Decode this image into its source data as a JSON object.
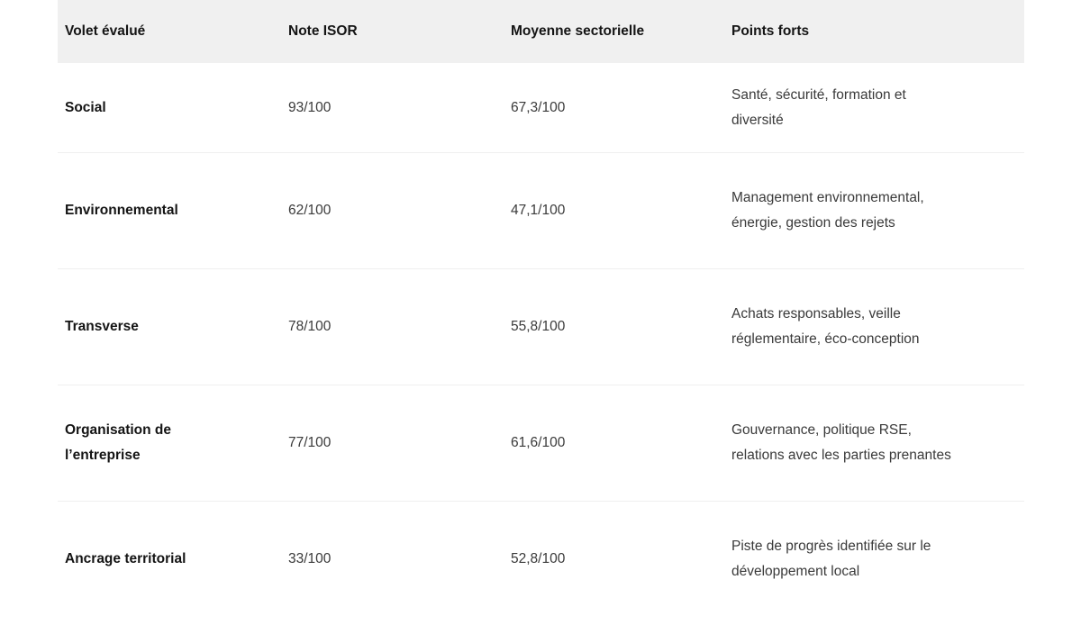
{
  "table": {
    "columns": [
      "Volet évalué",
      "Note ISOR",
      "Moyenne sectorielle",
      "Points forts"
    ],
    "rows": [
      {
        "volet": "Social",
        "note_isor": "93/100",
        "moyenne_sectorielle": "67,3/100",
        "points_forts": "Santé, sécurité, formation et\ndiversité"
      },
      {
        "volet": "Environnemental",
        "note_isor": "62/100",
        "moyenne_sectorielle": "47,1/100",
        "points_forts": "Management environnemental,\nénergie, gestion des rejets"
      },
      {
        "volet": "Transverse",
        "note_isor": "78/100",
        "moyenne_sectorielle": "55,8/100",
        "points_forts": "Achats responsables, veille\nréglementaire, éco-conception"
      },
      {
        "volet": "Organisation de\nl’entreprise",
        "note_isor": "77/100",
        "moyenne_sectorielle": "61,6/100",
        "points_forts": "Gouvernance, politique RSE,\nrelations avec les parties prenantes"
      },
      {
        "volet": "Ancrage territorial",
        "note_isor": "33/100",
        "moyenne_sectorielle": "52,8/100",
        "points_forts": "Piste de progrès identifiée sur le\ndéveloppement local"
      }
    ]
  },
  "colors": {
    "header_background": "#f0f0f0",
    "row_divider": "#f0f0f0",
    "heading_text": "#141414",
    "body_text": "#3a3a3a",
    "page_background": "#ffffff"
  },
  "chart_data": {
    "type": "table",
    "title": "",
    "categories": [
      "Social",
      "Environnemental",
      "Transverse",
      "Organisation de l’entreprise",
      "Ancrage territorial"
    ],
    "series": [
      {
        "name": "Note ISOR",
        "values": [
          93,
          62,
          78,
          77,
          33
        ]
      },
      {
        "name": "Moyenne sectorielle",
        "values": [
          67.3,
          47.1,
          55.8,
          61.6,
          52.8
        ]
      }
    ],
    "scale_max": 100
  }
}
